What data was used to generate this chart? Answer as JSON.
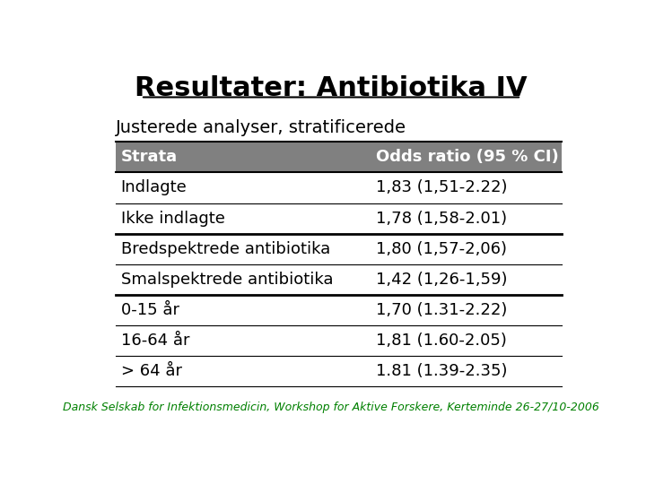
{
  "title": "Resultater: Antibiotika IV",
  "subtitle": "Justerede analyser, stratificerede",
  "header": [
    "Strata",
    "Odds ratio (95 % CI)"
  ],
  "header_bg": "#808080",
  "header_fg": "#ffffff",
  "rows": [
    [
      "Indlagte",
      "1,83 (1,51-2.22)"
    ],
    [
      "Ikke indlagte",
      "1,78 (1,58-2.01)"
    ],
    [
      "Bredspektrede antibiotika",
      "1,80 (1,57-2,06)"
    ],
    [
      "Smalspektrede antibiotika",
      "1,42 (1,26-1,59)"
    ],
    [
      "0-15 år",
      "1,70 (1.31-2.22)"
    ],
    [
      "16-64 år",
      "1,81 (1.60-2.05)"
    ],
    [
      "> 64 år",
      "1.81 (1.39-2.35)"
    ]
  ],
  "thick_lines_after": [
    1,
    3
  ],
  "footer": "Dansk Selskab for Infektionsmedicin, Workshop for Aktive Forskere, Kerteminde 26-27/10-2006",
  "footer_color": "#008000",
  "bg_color": "#ffffff",
  "title_fontsize": 22,
  "subtitle_fontsize": 14,
  "table_fontsize": 13,
  "footer_fontsize": 9
}
